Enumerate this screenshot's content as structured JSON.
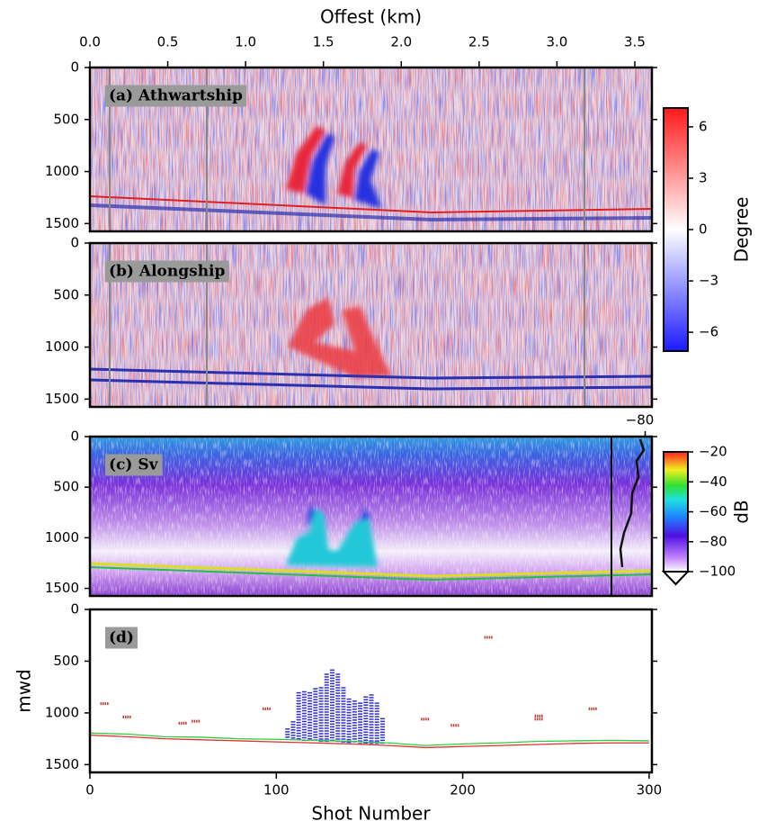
{
  "chart_data": [
    {
      "type": "image",
      "label": "(a) Athwartship",
      "xaxis": "top",
      "xlabel": "Offest (km)",
      "xlim": [
        0,
        3.61
      ],
      "xticks": [
        {
          "value": 0,
          "label": "0.0"
        },
        0.5,
        {
          "value": 1,
          "label": "1.0"
        },
        1.5,
        {
          "value": 2,
          "label": "2.0"
        },
        2.5,
        {
          "value": 3,
          "label": "3.0"
        },
        3.5
      ],
      "ylim": [
        0,
        1575
      ],
      "yticks": [
        0,
        500,
        1000,
        1500
      ],
      "colorbar": {
        "label": "Degree",
        "clim": [
          -7.1,
          7.1
        ],
        "ticks": [
          6,
          3,
          0,
          {
            "value": -3,
            "label": "−3"
          },
          {
            "value": -6,
            "label": "−6"
          }
        ]
      }
    },
    {
      "type": "image",
      "label": "(b) Alongship",
      "ylim": [
        0,
        1575
      ],
      "yticks": [
        0,
        500,
        1000,
        1500
      ]
    },
    {
      "type": "image",
      "label": "(c) Sv",
      "ylim": [
        0,
        1575
      ],
      "yticks": [
        0,
        500,
        1000,
        1500
      ],
      "inset_xlim": [
        -105,
        -75
      ],
      "inset_xticks": [
        {
          "value": -80,
          "label": "−80"
        }
      ],
      "colorbar": {
        "label": "dB",
        "clim": [
          -100,
          -20
        ],
        "ticks": [
          {
            "value": -20,
            "label": "−20"
          },
          {
            "value": -40,
            "label": "−40"
          },
          {
            "value": -60,
            "label": "−60"
          },
          {
            "value": -80,
            "label": "−80"
          },
          {
            "value": -100,
            "label": "−100"
          }
        ]
      }
    },
    {
      "type": "scatter",
      "label": "(d)",
      "xaxis": "bottom",
      "xlabel": "Shot Number",
      "ylabel": "mwd",
      "xlim": [
        0,
        301.5
      ],
      "xticks": [
        0,
        100,
        200,
        300
      ],
      "ylim": [
        0,
        1575
      ],
      "yticks": [
        0,
        500,
        1000,
        1500
      ],
      "series": [
        {
          "type": "range",
          "color": "#2e2ed8",
          "x": [
            106,
            109,
            112,
            115,
            118,
            121,
            124,
            127,
            130,
            133,
            136,
            139,
            142,
            145,
            148,
            151,
            154,
            157
          ],
          "values": [
            1150,
            1080,
            800,
            790,
            800,
            760,
            750,
            620,
            580,
            620,
            750,
            860,
            880,
            900,
            840,
            820,
            900,
            1050
          ],
          "bottoms": [
            1250,
            1260,
            1260,
            1270,
            1270,
            1270,
            1280,
            1280,
            1280,
            1280,
            1290,
            1290,
            1290,
            1300,
            1300,
            1300,
            1300,
            1300
          ]
        },
        {
          "type": "scatter",
          "color": "#c0392b",
          "x": [
            8,
            20,
            50,
            57,
            95,
            180,
            196,
            214,
            241,
            241,
            270
          ],
          "values": [
            910,
            1040,
            1100,
            1080,
            960,
            1060,
            1120,
            270,
            1030,
            1060,
            960
          ]
        },
        {
          "type": "line",
          "color": "#e03030",
          "x": [
            0,
            20,
            40,
            60,
            80,
            100,
            120,
            140,
            160,
            180,
            200,
            220,
            240,
            260,
            280,
            300
          ],
          "values": [
            1215,
            1230,
            1250,
            1260,
            1270,
            1280,
            1290,
            1300,
            1315,
            1335,
            1325,
            1315,
            1305,
            1295,
            1290,
            1290
          ]
        },
        {
          "type": "line",
          "color": "#2ecc40",
          "x": [
            0,
            20,
            40,
            60,
            80,
            100,
            120,
            140,
            160,
            180,
            200,
            220,
            240,
            260,
            280,
            300
          ],
          "values": [
            1195,
            1205,
            1230,
            1235,
            1250,
            1255,
            1265,
            1275,
            1290,
            1315,
            1300,
            1290,
            1275,
            1270,
            1265,
            1270
          ]
        }
      ]
    }
  ]
}
